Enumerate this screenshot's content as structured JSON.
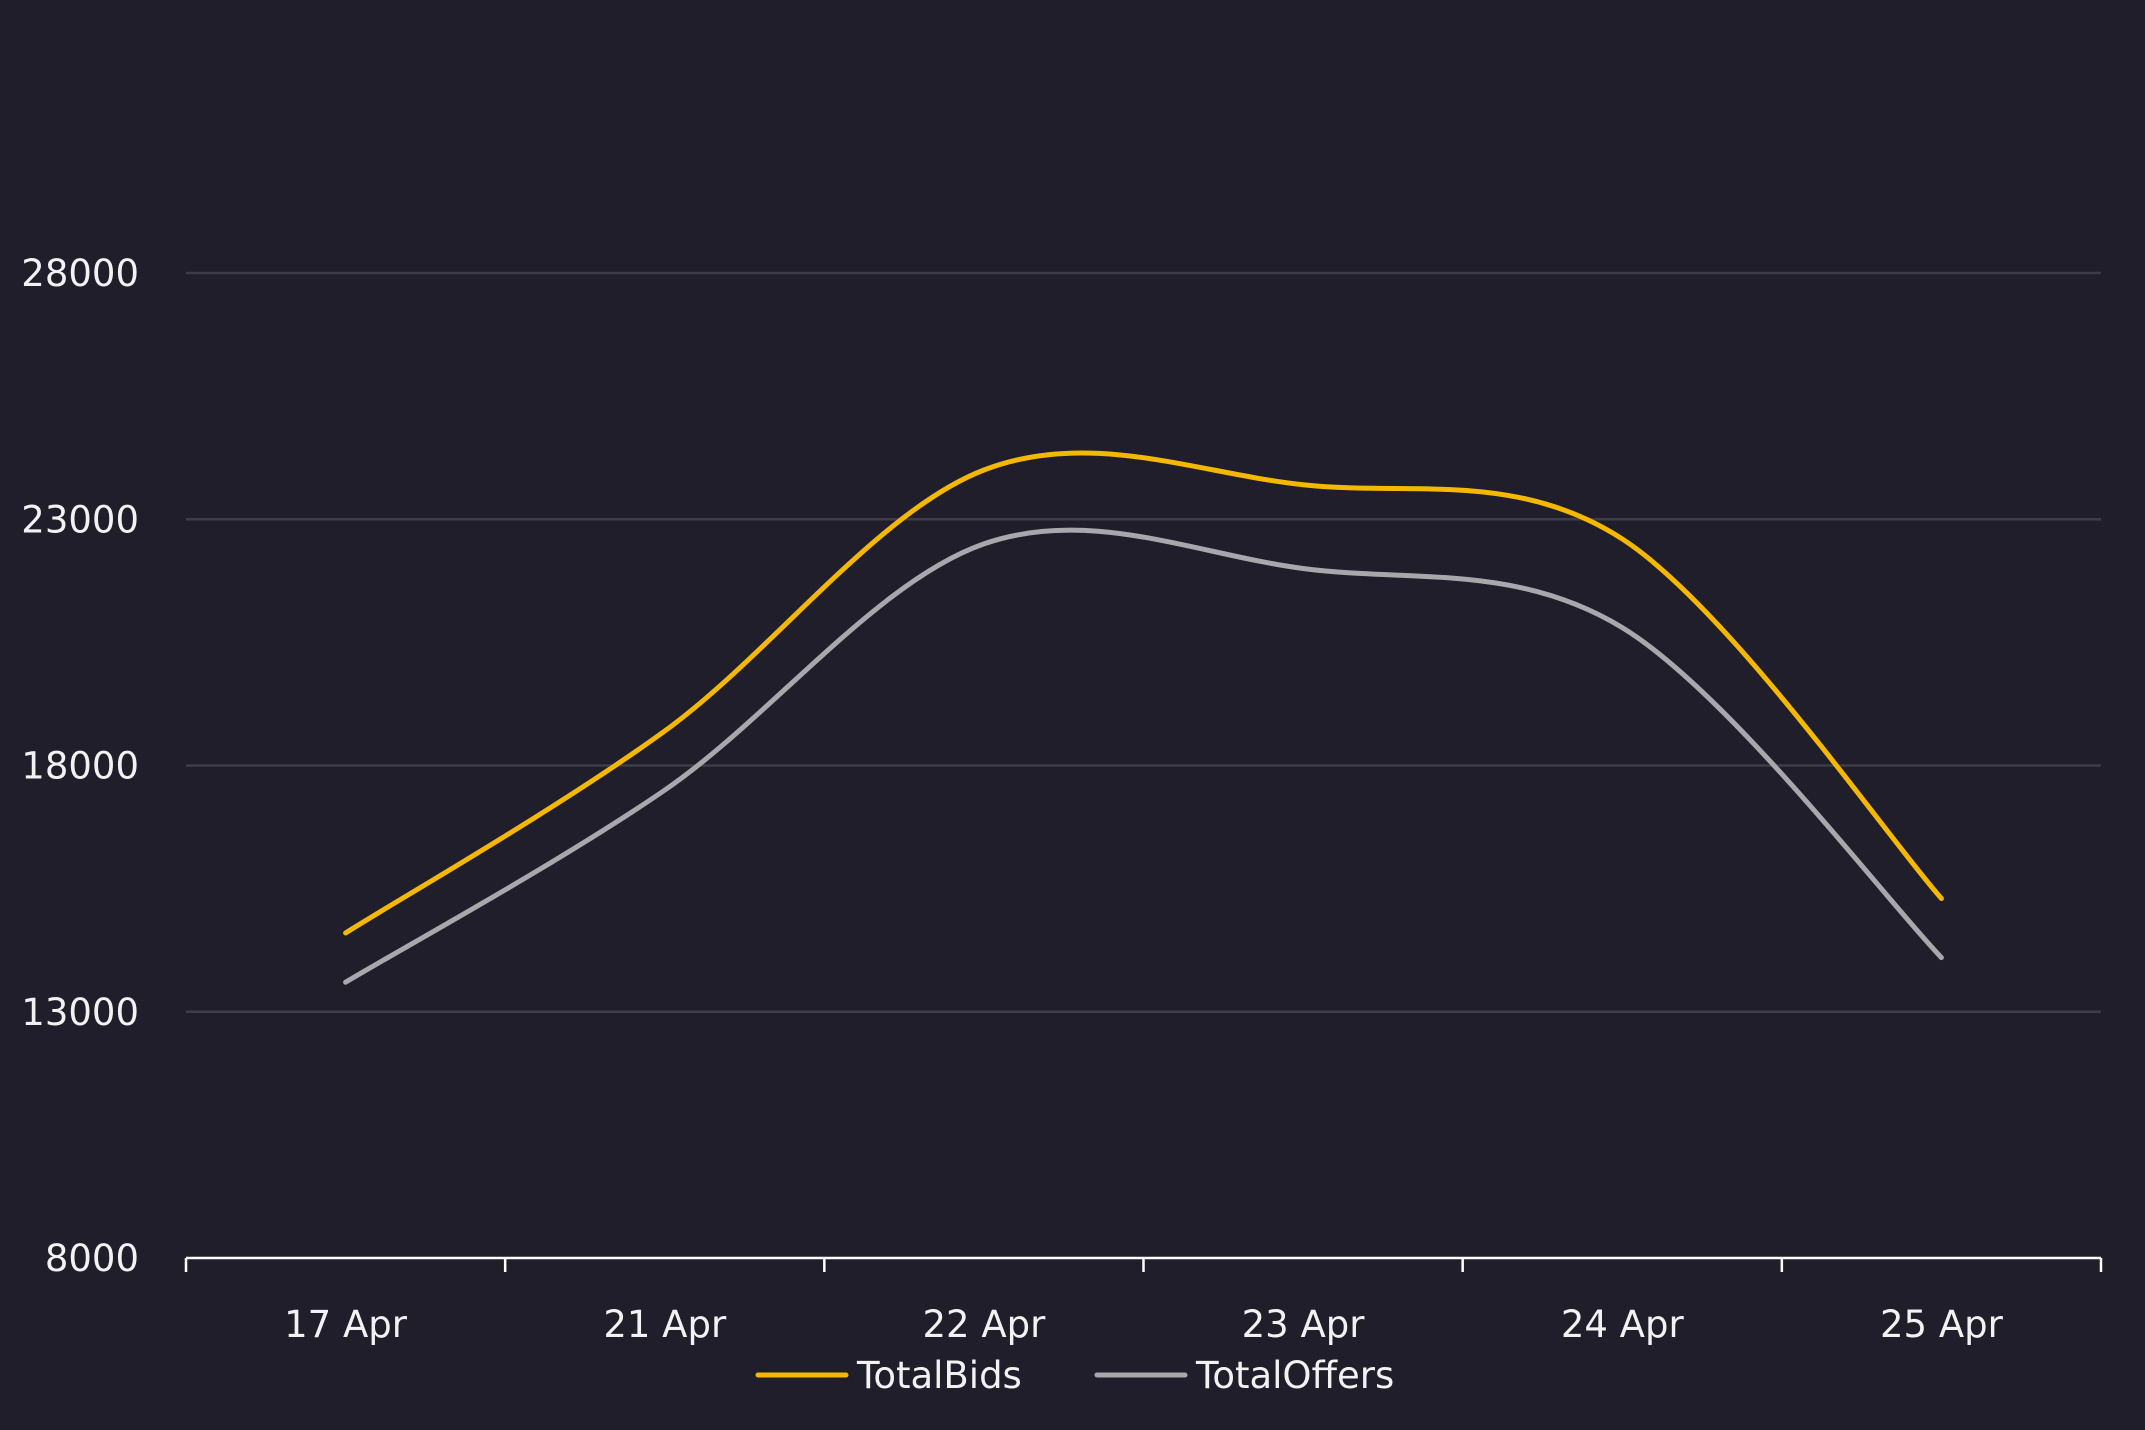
{
  "chart_data": {
    "type": "line",
    "title": "",
    "xlabel": "",
    "ylabel": "",
    "categories": [
      "17 Apr",
      "21 Apr",
      "22 Apr",
      "23 Apr",
      "24 Apr",
      "25 Apr"
    ],
    "y_ticks": [
      8000,
      13000,
      18000,
      23000,
      28000
    ],
    "ylim": [
      8000,
      28000
    ],
    "grid": true,
    "legend_position": "bottom-center",
    "series": [
      {
        "name": "TotalBids",
        "color": "#f5b800",
        "values": [
          14600,
          18700,
          24000,
          23700,
          22600,
          15300
        ]
      },
      {
        "name": "TotalOffers",
        "color": "#a8a8ac",
        "values": [
          13600,
          17500,
          22500,
          22000,
          20800,
          14100
        ]
      }
    ]
  }
}
